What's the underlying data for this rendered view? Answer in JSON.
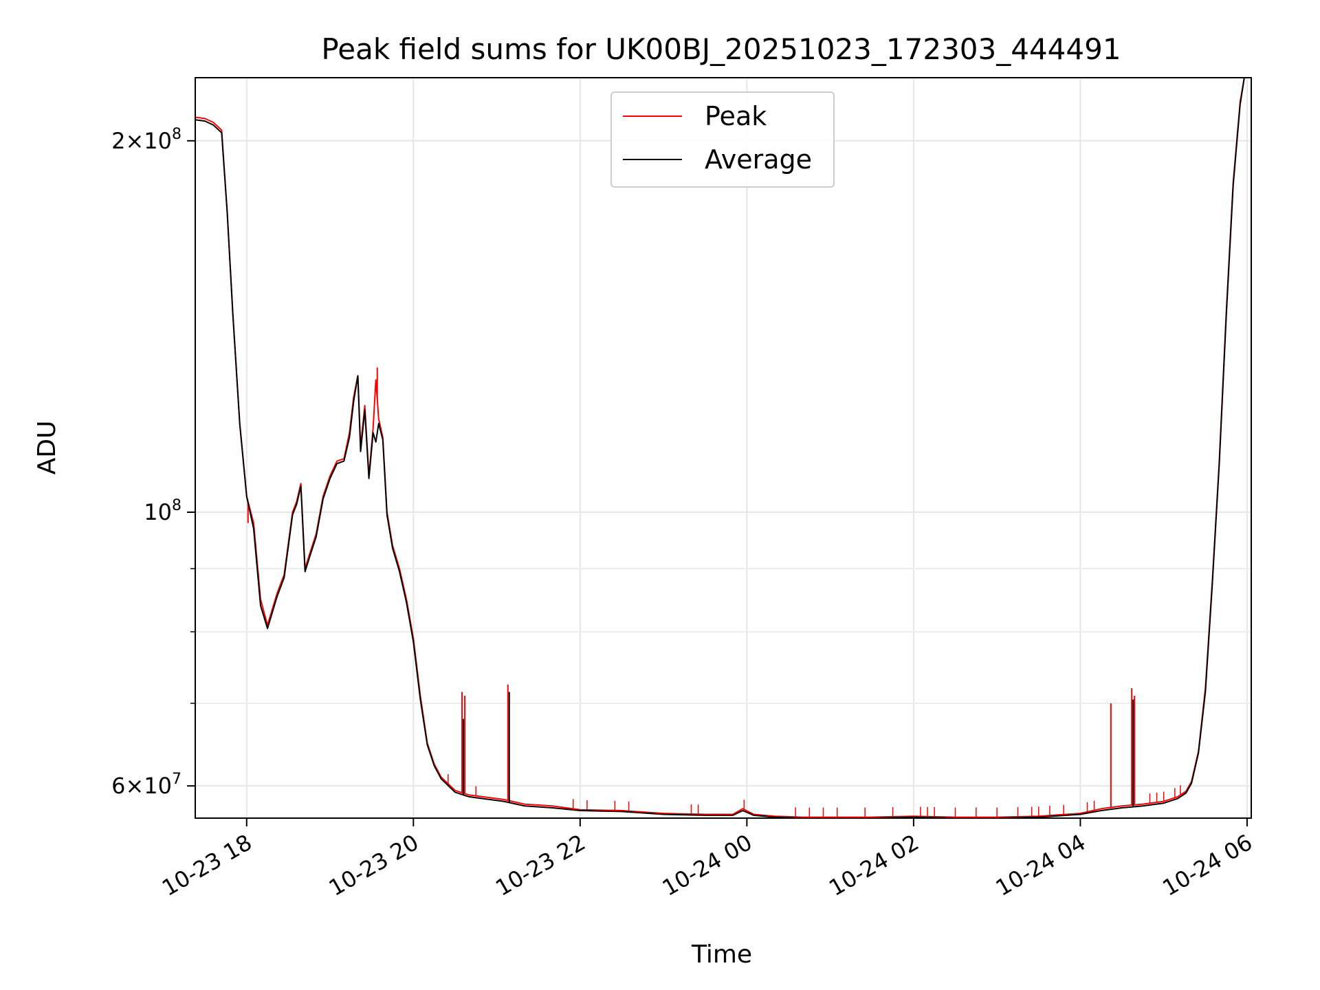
{
  "chart_data": {
    "type": "line",
    "title": "Peak field sums for UK00BJ_20251023_172303_444491",
    "xlabel": "Time",
    "ylabel": "ADU",
    "y_scale": "log",
    "ylim": [
      56500000,
      225000000
    ],
    "xlim": [
      "2025-10-23 17:23",
      "2025-10-24 06:03"
    ],
    "grid": true,
    "legend_position": "top-center",
    "x_ticks": [
      "2025-10-23 18:00",
      "2025-10-23 20:00",
      "2025-10-23 22:00",
      "2025-10-24 00:00",
      "2025-10-24 02:00",
      "2025-10-24 04:00",
      "2025-10-24 06:00"
    ],
    "x_tick_labels": [
      "10-23 18",
      "10-23 20",
      "10-23 22",
      "10-24 00",
      "10-24 02",
      "10-24 04",
      "10-24 06"
    ],
    "y_major_ticks": [
      {
        "value": 60000000,
        "mantissa": "6",
        "exponent": "7"
      },
      {
        "value": 100000000,
        "mantissa": "",
        "exponent": "8"
      },
      {
        "value": 200000000,
        "mantissa": "2",
        "exponent": "8"
      }
    ],
    "y_minor_ticks": [
      70000000,
      80000000,
      90000000
    ],
    "series": [
      {
        "name": "Peak",
        "color": "#ff0000",
        "x": [
          "2025-10-23 17:23",
          "2025-10-23 17:30",
          "2025-10-23 17:36",
          "2025-10-23 17:42",
          "2025-10-23 17:46",
          "2025-10-23 17:50",
          "2025-10-23 17:55",
          "2025-10-23 18:00",
          "2025-10-23 18:05",
          "2025-10-23 18:10",
          "2025-10-23 18:15",
          "2025-10-23 18:22",
          "2025-10-23 18:27",
          "2025-10-23 18:33",
          "2025-10-23 18:36",
          "2025-10-23 18:39",
          "2025-10-23 18:42",
          "2025-10-23 18:46",
          "2025-10-23 18:50",
          "2025-10-23 18:55",
          "2025-10-23 19:00",
          "2025-10-23 19:05",
          "2025-10-23 19:10",
          "2025-10-23 19:14",
          "2025-10-23 19:17",
          "2025-10-23 19:20",
          "2025-10-23 19:22",
          "2025-10-23 19:25",
          "2025-10-23 19:28",
          "2025-10-23 19:31",
          "2025-10-23 19:33",
          "2025-10-23 19:35",
          "2025-10-23 19:38",
          "2025-10-23 19:41",
          "2025-10-23 19:45",
          "2025-10-23 19:50",
          "2025-10-23 19:55",
          "2025-10-23 20:00",
          "2025-10-23 20:05",
          "2025-10-23 20:10",
          "2025-10-23 20:15",
          "2025-10-23 20:20",
          "2025-10-23 20:30",
          "2025-10-23 20:40",
          "2025-10-23 20:50",
          "2025-10-23 21:05",
          "2025-10-23 21:20",
          "2025-10-23 21:40",
          "2025-10-23 22:00",
          "2025-10-23 22:30",
          "2025-10-23 23:00",
          "2025-10-23 23:30",
          "2025-10-23 23:50",
          "2025-10-23 23:57",
          "2025-10-24 00:05",
          "2025-10-24 00:20",
          "2025-10-24 00:40",
          "2025-10-24 01:00",
          "2025-10-24 01:30",
          "2025-10-24 02:00",
          "2025-10-24 02:30",
          "2025-10-24 03:00",
          "2025-10-24 03:30",
          "2025-10-24 04:00",
          "2025-10-24 04:15",
          "2025-10-24 04:30",
          "2025-10-24 04:45",
          "2025-10-24 05:00",
          "2025-10-24 05:10",
          "2025-10-24 05:16",
          "2025-10-24 05:20",
          "2025-10-24 05:25",
          "2025-10-24 05:30",
          "2025-10-24 05:35",
          "2025-10-24 05:40",
          "2025-10-24 05:45",
          "2025-10-24 05:50",
          "2025-10-24 05:55",
          "2025-10-24 05:58"
        ],
        "y": [
          209000000,
          208500000,
          207000000,
          204000000,
          175000000,
          145000000,
          118000000,
          103000000,
          98000000,
          85000000,
          81000000,
          86000000,
          89000000,
          100000000,
          102000000,
          105500000,
          90000000,
          93000000,
          96000000,
          103000000,
          107000000,
          110000000,
          110500000,
          116000000,
          124000000,
          129000000,
          113000000,
          122000000,
          107000000,
          117000000,
          128000000,
          119000000,
          115000000,
          100000000,
          94000000,
          90000000,
          85000000,
          79000000,
          71000000,
          65000000,
          62500000,
          61000000,
          59500000,
          59000000,
          58800000,
          58500000,
          58000000,
          57800000,
          57400000,
          57300000,
          57000000,
          56900000,
          56900000,
          57500000,
          56900000,
          56700000,
          56600000,
          56600000,
          56600000,
          56700000,
          56600000,
          56600000,
          56700000,
          57000000,
          57500000,
          57800000,
          58000000,
          58300000,
          58800000,
          59400000,
          60500000,
          64000000,
          72000000,
          88000000,
          110000000,
          145000000,
          185000000,
          215000000,
          225000000
        ],
        "spikes": [
          {
            "x": "2025-10-23 20:35",
            "y": 71500000
          },
          {
            "x": "2025-10-23 20:37",
            "y": 71000000
          },
          {
            "x": "2025-10-23 21:08",
            "y": 72500000
          },
          {
            "x": "2025-10-23 19:34",
            "y": 131000000
          },
          {
            "x": "2025-10-23 18:01",
            "y": 98000000
          },
          {
            "x": "2025-10-24 04:22",
            "y": 70000000
          },
          {
            "x": "2025-10-24 04:37",
            "y": 72000000
          },
          {
            "x": "2025-10-24 04:39",
            "y": 71000000
          }
        ],
        "small_spikes": [
          "2025-10-23 20:25",
          "2025-10-23 20:45",
          "2025-10-23 21:55",
          "2025-10-23 22:05",
          "2025-10-23 22:25",
          "2025-10-23 22:35",
          "2025-10-23 23:20",
          "2025-10-23 23:25",
          "2025-10-23 23:58",
          "2025-10-24 00:35",
          "2025-10-24 00:45",
          "2025-10-24 00:55",
          "2025-10-24 01:05",
          "2025-10-24 01:25",
          "2025-10-24 01:45",
          "2025-10-24 02:05",
          "2025-10-24 02:10",
          "2025-10-24 02:15",
          "2025-10-24 02:30",
          "2025-10-24 02:45",
          "2025-10-24 03:00",
          "2025-10-24 03:15",
          "2025-10-24 03:25",
          "2025-10-24 03:30",
          "2025-10-24 03:38",
          "2025-10-24 03:48",
          "2025-10-24 04:05",
          "2025-10-24 04:10",
          "2025-10-24 04:50",
          "2025-10-24 04:55",
          "2025-10-24 05:00",
          "2025-10-24 05:08",
          "2025-10-24 05:12"
        ]
      },
      {
        "name": "Average",
        "color": "#000000",
        "x": [
          "2025-10-23 17:23",
          "2025-10-23 17:30",
          "2025-10-23 17:36",
          "2025-10-23 17:42",
          "2025-10-23 17:46",
          "2025-10-23 17:50",
          "2025-10-23 17:55",
          "2025-10-23 18:00",
          "2025-10-23 18:05",
          "2025-10-23 18:10",
          "2025-10-23 18:15",
          "2025-10-23 18:22",
          "2025-10-23 18:27",
          "2025-10-23 18:33",
          "2025-10-23 18:36",
          "2025-10-23 18:39",
          "2025-10-23 18:42",
          "2025-10-23 18:46",
          "2025-10-23 18:50",
          "2025-10-23 18:55",
          "2025-10-23 19:00",
          "2025-10-23 19:05",
          "2025-10-23 19:10",
          "2025-10-23 19:14",
          "2025-10-23 19:17",
          "2025-10-23 19:20",
          "2025-10-23 19:22",
          "2025-10-23 19:25",
          "2025-10-23 19:28",
          "2025-10-23 19:31",
          "2025-10-23 19:33",
          "2025-10-23 19:35",
          "2025-10-23 19:38",
          "2025-10-23 19:41",
          "2025-10-23 19:45",
          "2025-10-23 19:50",
          "2025-10-23 19:55",
          "2025-10-23 20:00",
          "2025-10-23 20:05",
          "2025-10-23 20:10",
          "2025-10-23 20:15",
          "2025-10-23 20:20",
          "2025-10-23 20:30",
          "2025-10-23 20:40",
          "2025-10-23 20:50",
          "2025-10-23 21:05",
          "2025-10-23 21:20",
          "2025-10-23 21:40",
          "2025-10-23 22:00",
          "2025-10-23 22:30",
          "2025-10-23 23:00",
          "2025-10-23 23:30",
          "2025-10-23 23:50",
          "2025-10-23 23:57",
          "2025-10-24 00:05",
          "2025-10-24 00:20",
          "2025-10-24 00:40",
          "2025-10-24 01:00",
          "2025-10-24 01:30",
          "2025-10-24 02:00",
          "2025-10-24 02:30",
          "2025-10-24 03:00",
          "2025-10-24 03:30",
          "2025-10-24 04:00",
          "2025-10-24 04:15",
          "2025-10-24 04:30",
          "2025-10-24 04:45",
          "2025-10-24 05:00",
          "2025-10-24 05:10",
          "2025-10-24 05:16",
          "2025-10-24 05:20",
          "2025-10-24 05:25",
          "2025-10-24 05:30",
          "2025-10-24 05:35",
          "2025-10-24 05:40",
          "2025-10-24 05:45",
          "2025-10-24 05:50",
          "2025-10-24 05:55",
          "2025-10-24 05:58"
        ],
        "y": [
          208000000,
          207500000,
          206000000,
          203000000,
          175000000,
          145000000,
          118000000,
          103000000,
          97000000,
          84000000,
          80500000,
          85500000,
          88500000,
          99500000,
          101500000,
          105000000,
          89500000,
          92500000,
          95500000,
          102500000,
          106500000,
          109500000,
          110000000,
          115000000,
          123000000,
          129000000,
          112000000,
          121000000,
          106500000,
          116000000,
          114000000,
          118000000,
          114500000,
          99500000,
          93500000,
          89500000,
          84500000,
          78500000,
          70500000,
          64800000,
          62300000,
          60800000,
          59300000,
          58800000,
          58600000,
          58300000,
          57800000,
          57600000,
          57300000,
          57200000,
          56900000,
          56800000,
          56800000,
          57300000,
          56800000,
          56600000,
          56500000,
          56500000,
          56500000,
          56600000,
          56500000,
          56500000,
          56600000,
          56900000,
          57300000,
          57600000,
          57800000,
          58100000,
          58600000,
          59200000,
          60300000,
          63800000,
          71500000,
          87500000,
          109500000,
          144000000,
          184000000,
          214000000,
          225000000
        ],
        "spikes": [
          {
            "x": "2025-10-23 20:36",
            "y": 68000000
          },
          {
            "x": "2025-10-23 21:09",
            "y": 71500000
          },
          {
            "x": "2025-10-24 04:38",
            "y": 70500000
          }
        ]
      }
    ]
  }
}
